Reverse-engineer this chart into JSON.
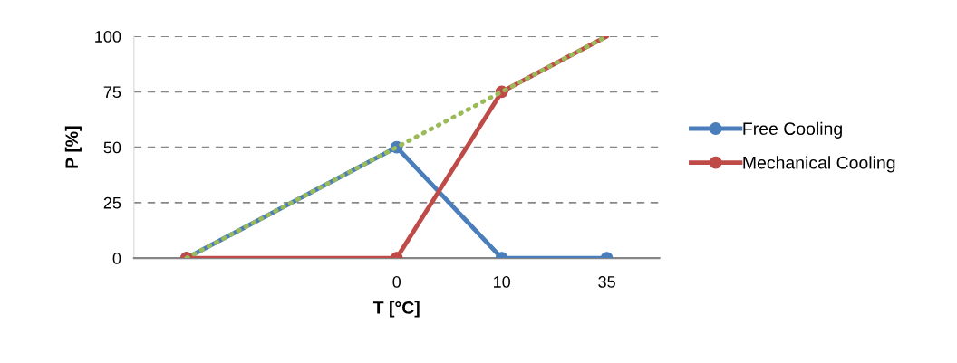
{
  "chart_data": {
    "type": "line",
    "xlabel": "T [°C]",
    "ylabel": "P [%]",
    "categories": [
      null,
      null,
      "0",
      "10",
      "35"
    ],
    "series": [
      {
        "color": "#4a7ebb",
        "values": [
          0,
          null,
          50,
          0,
          0
        ],
        "name": "Free Cooling",
        "marker": "circle",
        "line_style": "solid"
      },
      {
        "color": "#be4b48",
        "values": [
          0,
          null,
          0,
          75,
          null
        ],
        "name": "Mechanical Cooling",
        "marker": "circle",
        "line_style": "solid"
      },
      {
        "color": "#be4b48",
        "values": [
          null,
          null,
          null,
          75,
          100
        ],
        "line_style": "solid"
      },
      {
        "color": "#9bbb59",
        "values": [
          0,
          null,
          50,
          75,
          100
        ],
        "marker": "none",
        "line_style": "dotted"
      }
    ],
    "ylim": [
      0,
      100
    ],
    "yticks": [
      0,
      25,
      50,
      75,
      100
    ],
    "grid": "y",
    "legend": "right"
  }
}
